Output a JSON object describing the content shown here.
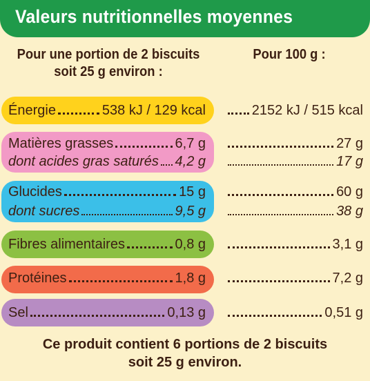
{
  "title": "Valeurs nutritionnelles moyennes",
  "columns": {
    "portion_line1": "Pour une portion de 2 biscuits",
    "portion_line2": "soit 25 g environ :",
    "per100": "Pour 100 g :"
  },
  "colors": {
    "header": "#1f9a4a",
    "background": "#fcf1c9",
    "energie": "#ffd21c",
    "matieres_grasses": "#f29ac6",
    "glucides": "#3bbfe8",
    "fibres": "#8cc043",
    "proteines": "#f26b4a",
    "sel": "#b78cc3"
  },
  "rows": [
    {
      "label": "Énergie",
      "portion": "538 kJ / 129 kcal",
      "per100": "2152 kJ / 515 kcal"
    },
    {
      "label": "Matières grasses",
      "portion": "6,7 g",
      "per100": "27 g"
    },
    {
      "label": "dont acides gras saturés",
      "portion": "4,2 g",
      "per100": "17 g"
    },
    {
      "label": "Glucides",
      "portion": "15 g",
      "per100": "60 g"
    },
    {
      "label": "dont sucres",
      "portion": "9,5 g",
      "per100": "38 g"
    },
    {
      "label": "Fibres alimentaires",
      "portion": "0,8 g",
      "per100": "3,1 g"
    },
    {
      "label": "Protéines",
      "portion": "1,8 g",
      "per100": "7,2 g"
    },
    {
      "label": "Sel",
      "portion": "0,13 g",
      "per100": "0,51 g"
    }
  ],
  "footer": {
    "line1": "Ce produit contient 6 portions de 2 biscuits",
    "line2": "soit 25 g environ."
  }
}
